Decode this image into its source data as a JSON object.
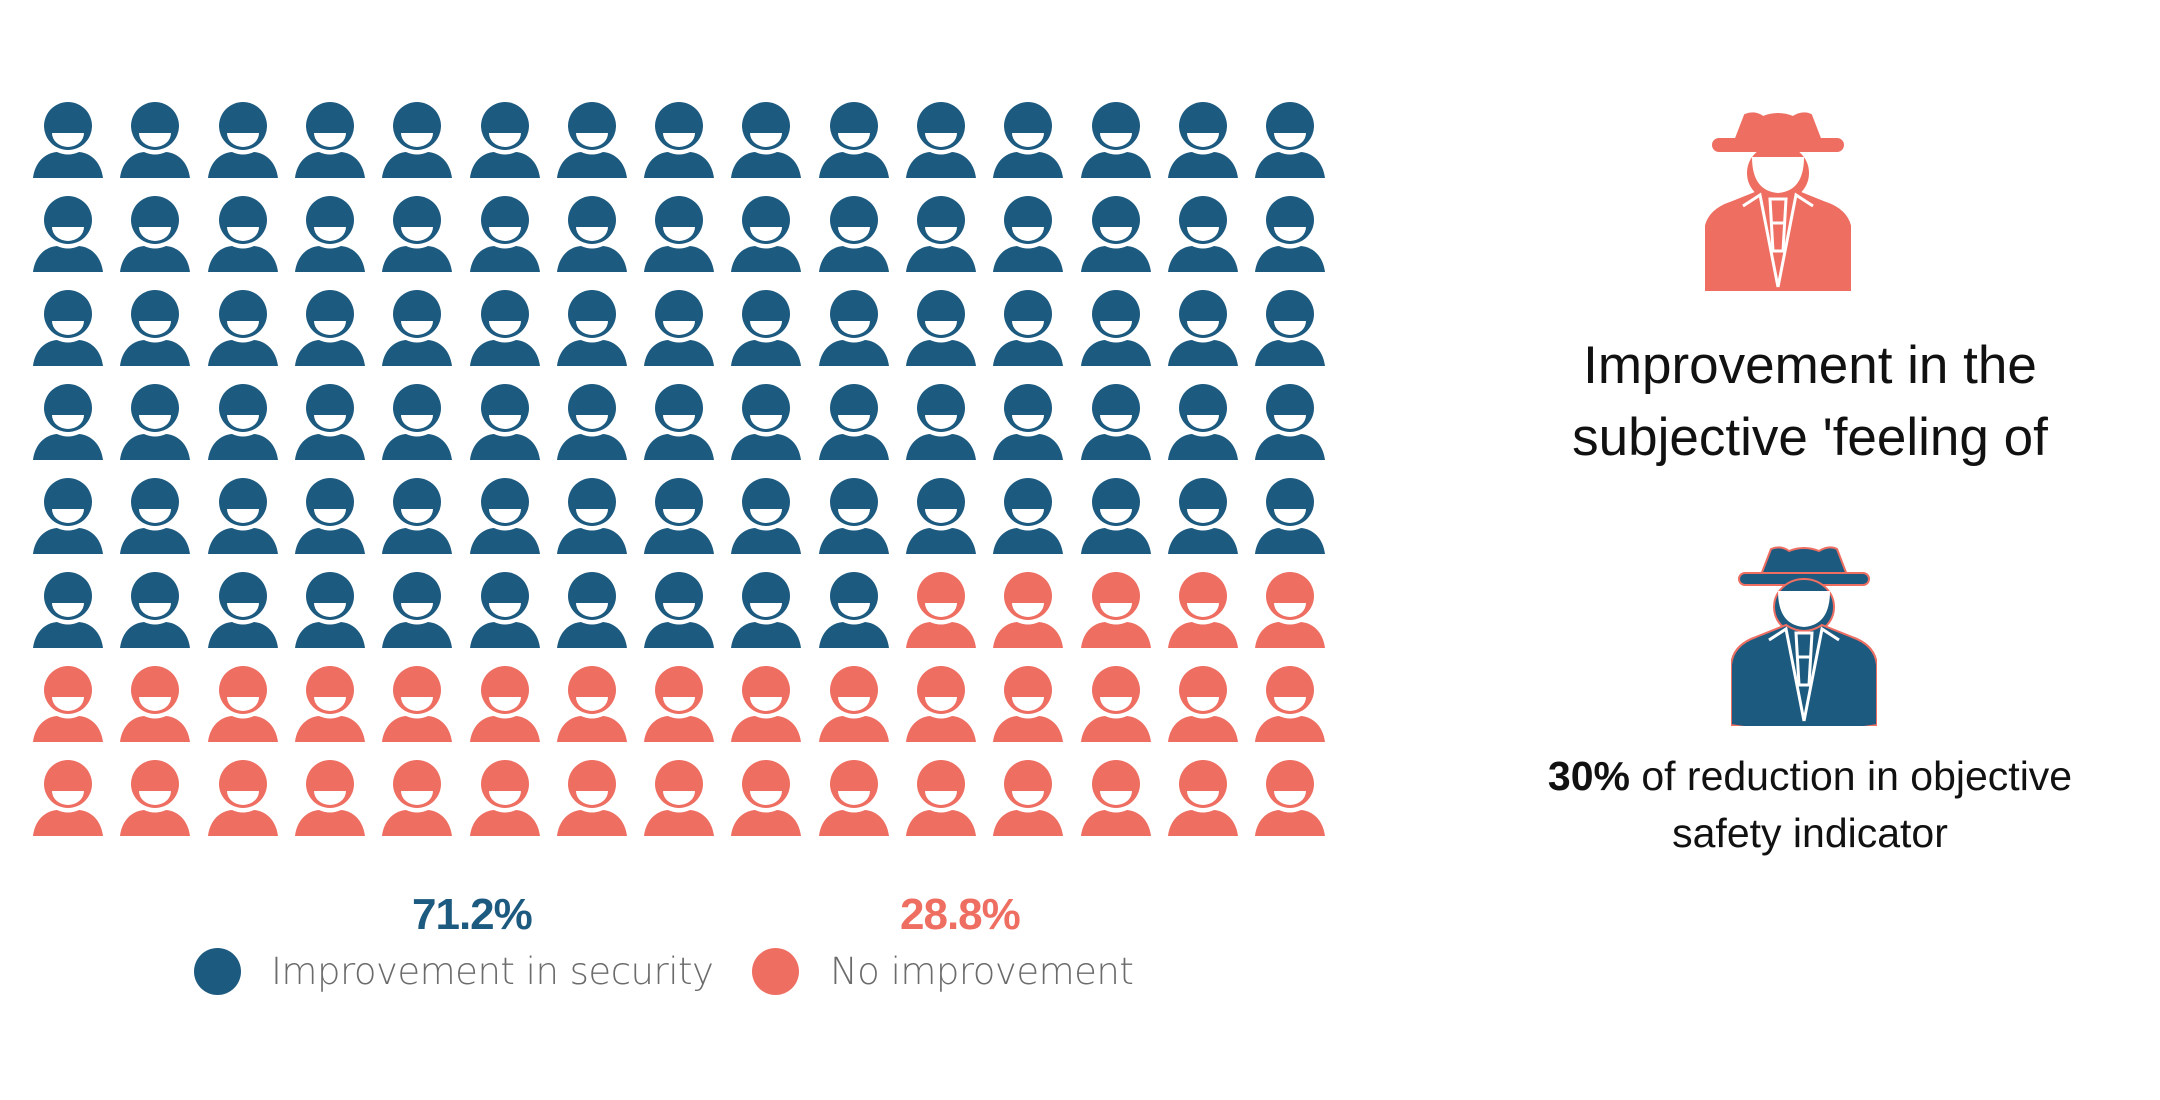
{
  "colors": {
    "improvement": "#1d5a80",
    "no_improvement": "#ee6e62"
  },
  "chart_data": {
    "type": "pictogram",
    "rows": 8,
    "columns": 15,
    "icon": "person-icon",
    "icon_counts": {
      "improvement": 85,
      "no_improvement": 35
    },
    "series": [
      {
        "name": "Improvement in security",
        "value_label": "71.2%",
        "value": 71.2,
        "color": "#1d5a80"
      },
      {
        "name": "No improvement",
        "value_label": "28.8%",
        "value": 28.8,
        "color": "#ee6e62"
      }
    ],
    "legend_position": "bottom"
  },
  "side": {
    "top_icon": "spy-icon",
    "title_line1": "Improvement in the",
    "title_line2": "subjective 'feeling of",
    "bottom_icon": "spy-icon",
    "caption_bold": "30%",
    "caption_rest": " of reduction in objective",
    "caption_line2": "safety indicator"
  }
}
